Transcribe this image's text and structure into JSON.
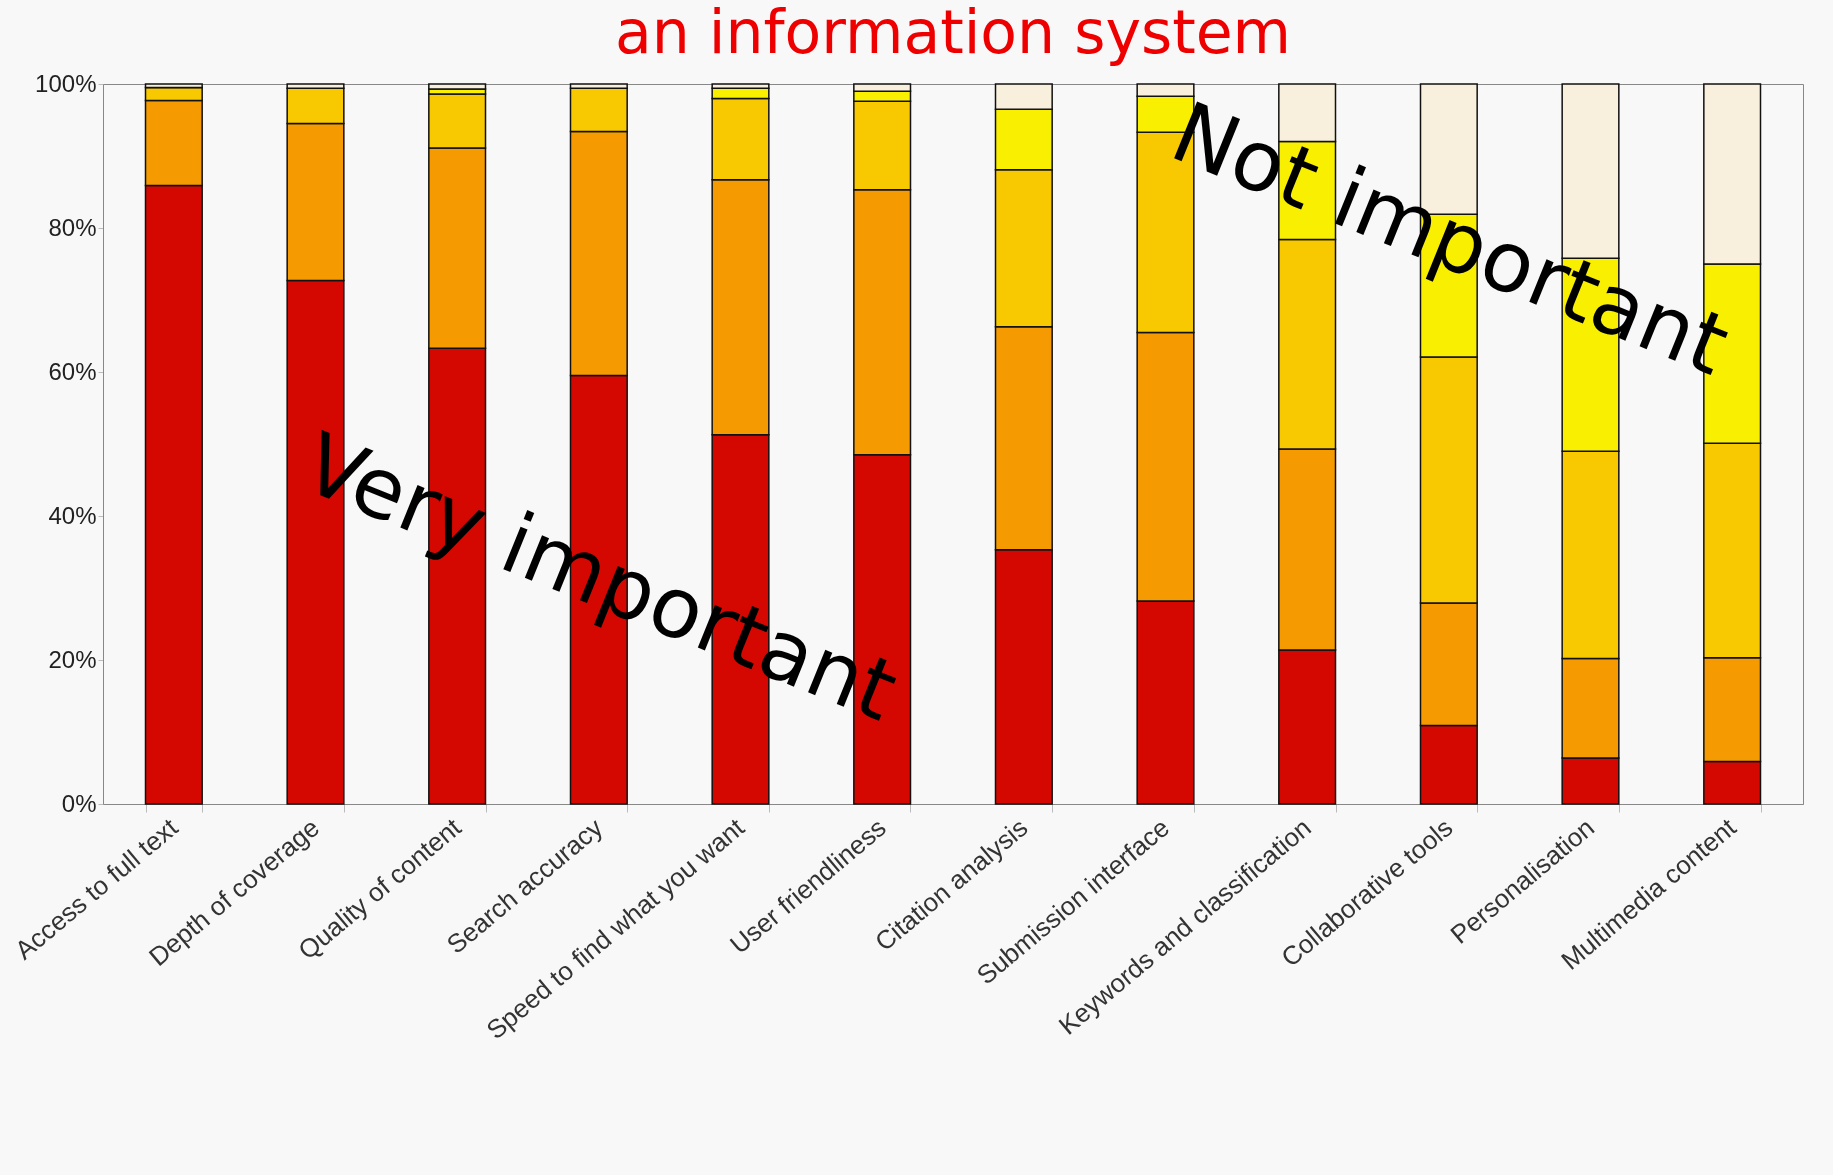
{
  "chart_data": {
    "type": "bar",
    "title": "an information system",
    "stacked": true,
    "legend": false,
    "grid": false,
    "categories": [
      "Access to full text",
      "Depth of coverage",
      "Quality of content",
      "Search accuracy",
      "Speed to find what you want",
      "User friendliness",
      "Citation analysis",
      "Submission interface",
      "Keywords and classification",
      "Collaborative tools",
      "Personalisation",
      "Multimedia content"
    ],
    "ylim": [
      0,
      100
    ],
    "yticks": [
      {
        "value": 0,
        "label": "0%"
      },
      {
        "value": 20,
        "label": "20%"
      },
      {
        "value": 40,
        "label": "40%"
      },
      {
        "value": 60,
        "label": "60%"
      },
      {
        "value": 80,
        "label": "80%"
      },
      {
        "value": 100,
        "label": "100%"
      }
    ],
    "series": [
      {
        "color": "#d40800",
        "values": [
          85.9,
          72.7,
          63.3,
          59.5,
          51.3,
          48.5,
          35.3,
          28.2,
          21.4,
          10.9,
          6.4,
          5.9
        ]
      },
      {
        "color": "#f59a00",
        "values": [
          11.8,
          21.8,
          27.8,
          33.9,
          35.4,
          36.8,
          31.0,
          37.3,
          27.9,
          17.0,
          13.8,
          14.4
        ]
      },
      {
        "color": "#f8c800",
        "values": [
          1.8,
          4.9,
          7.5,
          6.0,
          11.3,
          12.3,
          21.8,
          27.8,
          29.1,
          34.2,
          28.8,
          29.8
        ]
      },
      {
        "color": "#f8f000",
        "values": [
          0,
          0,
          0.7,
          0,
          1.4,
          1.4,
          8.4,
          5.0,
          13.6,
          19.8,
          26.8,
          24.9
        ]
      },
      {
        "color": "#f8f0dc",
        "values": [
          0.5,
          0.6,
          0.7,
          0.6,
          0.6,
          1.0,
          3.5,
          1.7,
          8.0,
          18.1,
          24.2,
          25.0
        ]
      }
    ],
    "annotations": [
      "Very important",
      "Not important"
    ]
  }
}
